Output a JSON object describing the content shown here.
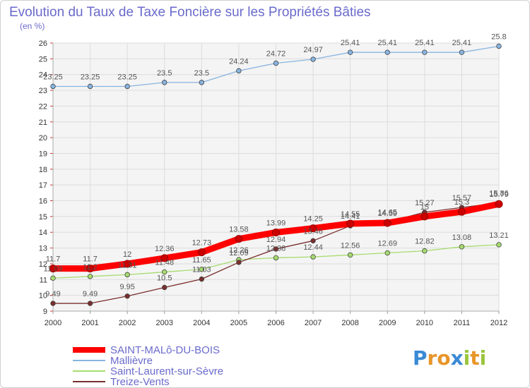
{
  "chart_data": {
    "type": "line",
    "title": "Evolution du Taux de Taxe Foncière sur les Propriétés Bâties",
    "subtitle": "(en %)",
    "x": [
      "2000",
      "2001",
      "2002",
      "2003",
      "2004",
      "2005",
      "2006",
      "2007",
      "2008",
      "2009",
      "2010",
      "2011",
      "2012"
    ],
    "ylim": [
      9,
      26
    ],
    "yticks": [
      9,
      10,
      11,
      12,
      13,
      14,
      15,
      16,
      17,
      18,
      19,
      20,
      21,
      22,
      23,
      24,
      25,
      26
    ],
    "grid": true,
    "legend_position": "bottom-left",
    "series": [
      {
        "name": "SAINT-MALô-DU-BOIS",
        "color": "#ff0000",
        "values": [
          11.7,
          11.7,
          12,
          12.36,
          12.73,
          13.58,
          13.99,
          14.25,
          14.55,
          14.59,
          15,
          15.3,
          15.79
        ],
        "labels": [
          "11.7",
          "11.7",
          "12",
          "12.36",
          "12.73",
          "13.58",
          "13.99",
          "14.25",
          "14.55",
          "14.59",
          "15",
          "15.3",
          "15.79"
        ]
      },
      {
        "name": "Mallièvre",
        "color": "#88b4e0",
        "values": [
          23.25,
          23.25,
          23.25,
          23.5,
          23.5,
          24.24,
          24.72,
          24.97,
          25.41,
          25.41,
          25.41,
          25.41,
          25.8
        ],
        "labels": [
          "23.25",
          "23.25",
          "23.25",
          "23.5",
          "23.5",
          "24.24",
          "24.72",
          "24.97",
          "25.41",
          "25.41",
          "25.41",
          "25.41",
          "25.8"
        ]
      },
      {
        "name": "Saint-Laurent-sur-Sèvre",
        "color": "#a6dc6e",
        "values": [
          11.09,
          11.2,
          11.31,
          11.48,
          11.65,
          12.26,
          12.38,
          12.44,
          12.56,
          12.69,
          12.82,
          13.08,
          13.21
        ],
        "labels": [
          "11.09",
          "11.2",
          "11.31",
          "11.48",
          "11.65",
          "12.26",
          "12.38",
          "12.44",
          "12.56",
          "12.69",
          "12.82",
          "13.08",
          "13.21"
        ]
      },
      {
        "name": "Treize-Vents",
        "color": "#7a2e2e",
        "values": [
          9.49,
          9.49,
          9.95,
          10.5,
          11.03,
          12.09,
          12.94,
          13.46,
          14.41,
          14.65,
          15.27,
          15.57,
          15.86
        ],
        "labels": [
          "9.49",
          "9.49",
          "9.95",
          "10.5",
          "11.03",
          "12.09",
          "12.94",
          "13.46",
          "14.41",
          "14.65",
          "15.27",
          "15.57",
          "15.86"
        ]
      }
    ]
  },
  "logo": {
    "letters": [
      "P",
      "r",
      "o",
      "x",
      "i",
      "t",
      "i"
    ],
    "colors": [
      "#3a8ad6",
      "#e8962a",
      "#e8962a",
      "#3a8ad6",
      "#9bc53d",
      "#e8962a",
      "#9bc53d"
    ]
  }
}
